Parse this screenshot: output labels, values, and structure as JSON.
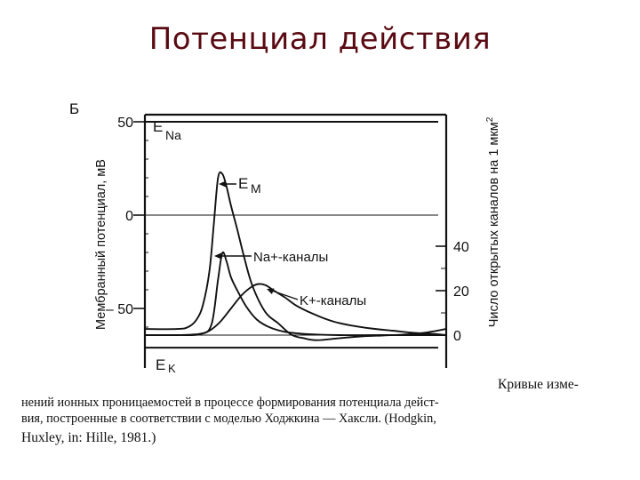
{
  "slide": {
    "title": "Потенциал действия"
  },
  "chart_data": {
    "type": "line",
    "panel_label": "Б",
    "ylabel": "Мембранный потенциал, мВ",
    "y2label": "Число открытых каналов на 1 мкм",
    "y2label_sup": "2",
    "ylim": [
      -75,
      55
    ],
    "yticks": [
      {
        "value": 50,
        "label": "50"
      },
      {
        "value": 0,
        "label": "0"
      },
      {
        "value": -50,
        "label": "– 50"
      }
    ],
    "y2ticks": [
      {
        "value": 0,
        "label": "0"
      },
      {
        "value": 20,
        "label": "20"
      },
      {
        "value": 40,
        "label": "40"
      }
    ],
    "reference_lines": [
      {
        "name": "E_Na",
        "label_main": "E",
        "label_sub": "Na",
        "value": 50
      },
      {
        "name": "E_K",
        "label_main": "E",
        "label_sub": "K",
        "value": -71
      }
    ],
    "series": [
      {
        "name": "E_M",
        "label_main": "E",
        "label_sub": "M",
        "axis": "left",
        "x": [
          0,
          1.5,
          2.0,
          2.4,
          2.7,
          3.0,
          3.2,
          3.4,
          3.6,
          3.8,
          4.0,
          4.3,
          4.6,
          5.0,
          5.6,
          6.2,
          6.8,
          7.4,
          8.0,
          9.0,
          10.0,
          11.0,
          12.0,
          13.0,
          14.0
        ],
        "y": [
          -61,
          -61,
          -60,
          -56,
          -48,
          -30,
          -5,
          20,
          22,
          15,
          5,
          -8,
          -22,
          -38,
          -52,
          -58,
          -64,
          -66,
          -67,
          -66,
          -65,
          -64.5,
          -64,
          -63,
          -61
        ]
      },
      {
        "name": "Na_channels",
        "label": "Na+-каналы",
        "axis": "right",
        "x": [
          0,
          1.5,
          2.6,
          3.1,
          3.4,
          3.6,
          3.8,
          4.0,
          4.3,
          4.7,
          5.2,
          5.8,
          6.5,
          7.5,
          9.0,
          11.0,
          14.0
        ],
        "y": [
          0,
          0,
          0.5,
          5,
          25,
          37,
          33,
          26,
          20,
          13,
          7,
          3.5,
          1.5,
          0.5,
          0,
          0,
          0
        ]
      },
      {
        "name": "K_channels",
        "label": "K+-каналы",
        "axis": "right",
        "x": [
          0,
          1.5,
          2.5,
          3.0,
          3.5,
          4.0,
          4.5,
          5.0,
          5.3,
          5.6,
          6.0,
          6.5,
          7.0,
          7.6,
          8.2,
          8.8,
          9.5,
          10.5,
          11.5,
          12.5,
          13.5,
          14.0
        ],
        "y": [
          0,
          0,
          0.5,
          2,
          6,
          12,
          18,
          22,
          23,
          22.5,
          20,
          17,
          13.5,
          10.5,
          8,
          6,
          4.5,
          3,
          2,
          1,
          0.5,
          0
        ]
      }
    ]
  },
  "caption": {
    "line1_right": "Кривые изме-",
    "line2": "нений ионных проницаемостей в процессе формирования потенциала дейст-",
    "line3": "вия, построенные в соответствии с моделью Ходжкина — Хаксли. (Hodgkin,",
    "line4": "Huxley, in: Hille, 1981.)"
  },
  "colors": {
    "title": "#5a0a12",
    "ink": "#111111"
  }
}
